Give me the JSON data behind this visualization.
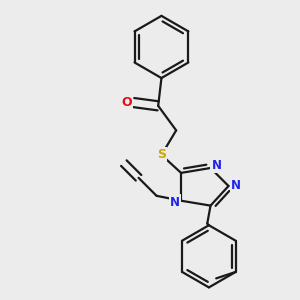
{
  "bg_color": "#ececec",
  "line_color": "#1a1a1a",
  "n_color": "#2222ee",
  "o_color": "#dd1111",
  "s_color": "#ccaa00",
  "line_width": 1.6,
  "figsize": [
    3.0,
    3.0
  ],
  "dpi": 100,
  "xlim": [
    0.05,
    0.95
  ],
  "ylim": [
    0.05,
    0.95
  ]
}
